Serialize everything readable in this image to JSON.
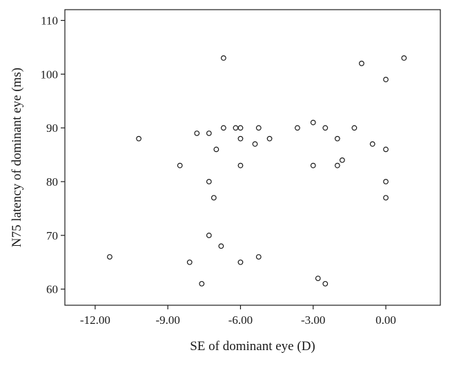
{
  "chart_data": {
    "type": "scatter",
    "title": "",
    "xlabel": "SE of dominant eye (D)",
    "ylabel": "N75 latency of dominant eye (ms)",
    "xlim": [
      -13.25,
      2.25
    ],
    "ylim": [
      57.0,
      112.0
    ],
    "xticks": [
      -12,
      -9,
      -6,
      -3,
      0
    ],
    "xtick_labels": [
      "-12.00",
      "-9.00",
      "-6.00",
      "-3.00",
      "0.00"
    ],
    "yticks": [
      60,
      70,
      80,
      90,
      100,
      110
    ],
    "ytick_labels": [
      "60",
      "70",
      "80",
      "90",
      "100",
      "110"
    ],
    "grid": false,
    "legend": "none",
    "marker": "open-circle",
    "marker_color": "#1a1a1a",
    "series": [
      {
        "x": [
          -11.4,
          -10.2,
          -8.5,
          -8.1,
          -7.8,
          -7.6,
          -7.3,
          -7.3,
          -7.3,
          -7.1,
          -7.0,
          -6.8,
          -6.7,
          -6.7,
          -6.2,
          -6.0,
          -6.0,
          -6.0,
          -6.0,
          -5.4,
          -5.25,
          -5.25,
          -4.8,
          -3.65,
          -3.0,
          -3.0,
          -2.8,
          -2.5,
          -2.5,
          -2.0,
          -2.0,
          -1.8,
          -1.3,
          -1.0,
          -0.55,
          0.0,
          0.0,
          0.0,
          0.0,
          0.75
        ],
        "y": [
          66,
          88,
          83,
          65,
          89,
          61,
          89,
          80,
          70,
          77,
          86,
          68,
          103,
          90,
          90,
          90,
          88,
          83,
          65,
          87,
          90,
          66,
          88,
          90,
          91,
          83,
          62,
          90,
          61,
          88,
          83,
          84,
          90,
          102,
          87,
          99,
          86,
          80,
          77,
          103
        ]
      }
    ]
  }
}
